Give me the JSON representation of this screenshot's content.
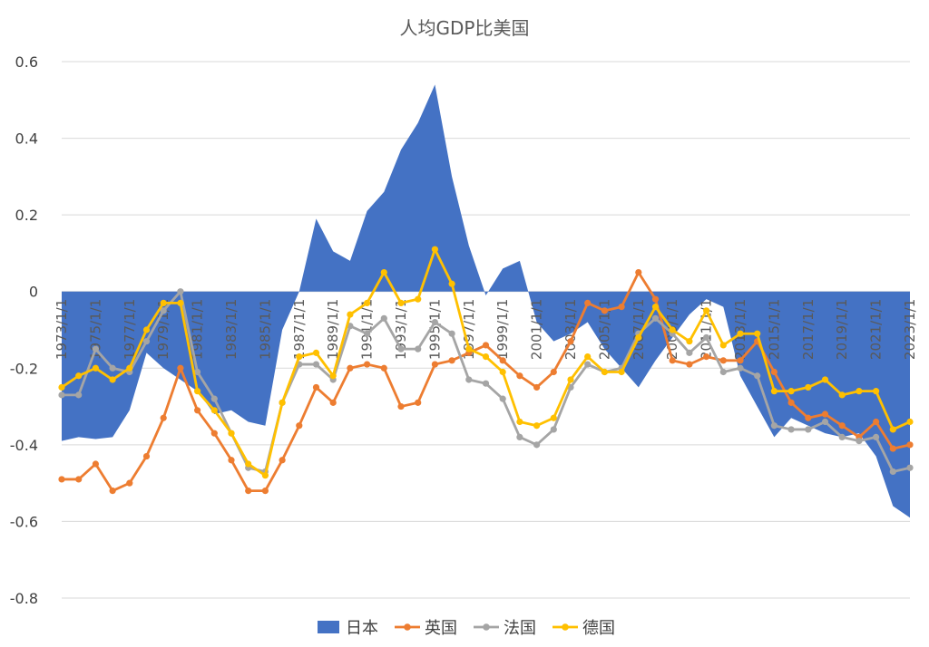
{
  "chart_data": {
    "type": "line",
    "title": "人均GDP比美国",
    "xlabel": "",
    "ylabel": "",
    "ylim": [
      -0.8,
      0.6
    ],
    "y_ticks": [
      0.6,
      0.4,
      0.2,
      0,
      -0.2,
      -0.4,
      -0.6,
      -0.8
    ],
    "y_tick_labels": [
      "0.6",
      "0.4",
      "0.2",
      "0",
      "-0.2",
      "-0.4",
      "-0.6",
      "-0.8"
    ],
    "x": [
      "1973/1/1",
      "1974/1/1",
      "1975/1/1",
      "1976/1/1",
      "1977/1/1",
      "1978/1/1",
      "1979/1/1",
      "1980/1/1",
      "1981/1/1",
      "1982/1/1",
      "1983/1/1",
      "1984/1/1",
      "1985/1/1",
      "1986/1/1",
      "1987/1/1",
      "1988/1/1",
      "1989/1/1",
      "1990/1/1",
      "1991/1/1",
      "1992/1/1",
      "1993/1/1",
      "1994/1/1",
      "1995/1/1",
      "1996/1/1",
      "1997/1/1",
      "1998/1/1",
      "1999/1/1",
      "2000/1/1",
      "2001/1/1",
      "2002/1/1",
      "2003/1/1",
      "2004/1/1",
      "2005/1/1",
      "2006/1/1",
      "2007/1/1",
      "2008/1/1",
      "2009/1/1",
      "2010/1/1",
      "2011/1/1",
      "2012/1/1",
      "2013/1/1",
      "2014/1/1",
      "2015/1/1",
      "2016/1/1",
      "2017/1/1",
      "2018/1/1",
      "2019/1/1",
      "2020/1/1",
      "2021/1/1",
      "2022/1/1",
      "2023/1/1"
    ],
    "x_tick_labels": [
      "1973/1/1",
      "1975/1/1",
      "1977/1/1",
      "1979/1/1",
      "1981/1/1",
      "1983/1/1",
      "1985/1/1",
      "1987/1/1",
      "1989/1/1",
      "1991/1/1",
      "1993/1/1",
      "1995/1/1",
      "1997/1/1",
      "1999/1/1",
      "2001/1/1",
      "2003/1/1",
      "2005/1/1",
      "2007/1/1",
      "2009/1/1",
      "2011/1/1",
      "2013/1/1",
      "2015/1/1",
      "2017/1/1",
      "2019/1/1",
      "2021/1/1",
      "2023/1/1"
    ],
    "grid": "horizontal",
    "legend_position": "bottom",
    "series": [
      {
        "name": "日本",
        "type": "area",
        "color": "#4472C4",
        "values": [
          -0.39,
          -0.38,
          -0.385,
          -0.38,
          -0.31,
          -0.16,
          -0.2,
          -0.23,
          -0.26,
          -0.32,
          -0.31,
          -0.34,
          -0.35,
          -0.1,
          0.0,
          0.19,
          0.105,
          0.08,
          0.21,
          0.26,
          0.37,
          0.44,
          0.54,
          0.3,
          0.12,
          -0.01,
          0.06,
          0.08,
          -0.08,
          -0.13,
          -0.11,
          -0.08,
          -0.15,
          -0.2,
          -0.25,
          -0.18,
          -0.12,
          -0.06,
          -0.02,
          -0.04,
          -0.22,
          -0.3,
          -0.38,
          -0.33,
          -0.35,
          -0.37,
          -0.38,
          -0.37,
          -0.43,
          -0.56,
          -0.59
        ]
      },
      {
        "name": "英国",
        "type": "line",
        "color": "#ED7D31",
        "values": [
          -0.49,
          -0.49,
          -0.45,
          -0.52,
          -0.5,
          -0.43,
          -0.33,
          -0.2,
          -0.31,
          -0.37,
          -0.44,
          -0.52,
          -0.52,
          -0.44,
          -0.35,
          -0.25,
          -0.29,
          -0.2,
          -0.19,
          -0.2,
          -0.3,
          -0.29,
          -0.19,
          -0.18,
          -0.16,
          -0.14,
          -0.18,
          -0.22,
          -0.25,
          -0.21,
          -0.13,
          -0.03,
          -0.05,
          -0.04,
          0.05,
          -0.02,
          -0.18,
          -0.19,
          -0.17,
          -0.18,
          -0.18,
          -0.13,
          -0.21,
          -0.29,
          -0.33,
          -0.32,
          -0.35,
          -0.38,
          -0.34,
          -0.41,
          -0.4
        ]
      },
      {
        "name": "法国",
        "type": "line",
        "color": "#A5A5A5",
        "values": [
          -0.27,
          -0.27,
          -0.15,
          -0.2,
          -0.21,
          -0.13,
          -0.05,
          0.0,
          -0.21,
          -0.28,
          -0.37,
          -0.46,
          -0.47,
          -0.29,
          -0.19,
          -0.19,
          -0.23,
          -0.09,
          -0.11,
          -0.07,
          -0.15,
          -0.15,
          -0.08,
          -0.11,
          -0.23,
          -0.24,
          -0.28,
          -0.38,
          -0.4,
          -0.36,
          -0.25,
          -0.19,
          -0.21,
          -0.2,
          -0.11,
          -0.07,
          -0.11,
          -0.16,
          -0.12,
          -0.21,
          -0.2,
          -0.22,
          -0.35,
          -0.36,
          -0.36,
          -0.34,
          -0.38,
          -0.39,
          -0.38,
          -0.47,
          -0.46
        ]
      },
      {
        "name": "德国",
        "type": "line",
        "color": "#FFC000",
        "values": [
          -0.25,
          -0.22,
          -0.2,
          -0.23,
          -0.2,
          -0.1,
          -0.03,
          -0.03,
          -0.26,
          -0.31,
          -0.37,
          -0.45,
          -0.48,
          -0.29,
          -0.17,
          -0.16,
          -0.22,
          -0.06,
          -0.03,
          0.05,
          -0.03,
          -0.02,
          0.11,
          0.02,
          -0.15,
          -0.17,
          -0.21,
          -0.34,
          -0.35,
          -0.33,
          -0.23,
          -0.17,
          -0.21,
          -0.21,
          -0.12,
          -0.04,
          -0.1,
          -0.13,
          -0.05,
          -0.14,
          -0.11,
          -0.11,
          -0.26,
          -0.26,
          -0.25,
          -0.23,
          -0.27,
          -0.26,
          -0.26,
          -0.36,
          -0.34
        ]
      }
    ]
  }
}
